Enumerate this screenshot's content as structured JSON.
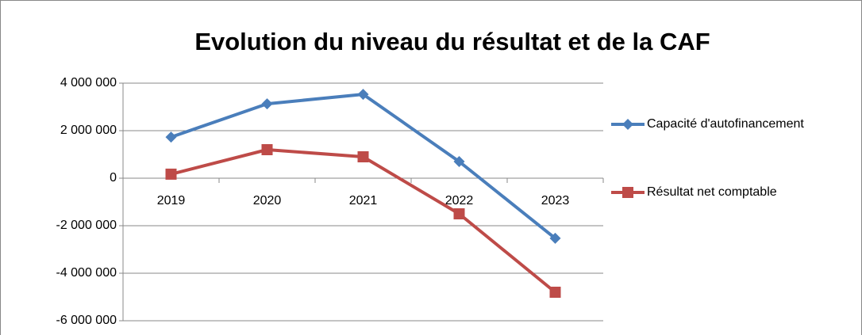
{
  "chart_data": {
    "type": "line",
    "title": "Evolution du niveau du résultat et de la CAF",
    "categories": [
      "2019",
      "2020",
      "2021",
      "2022",
      "2023"
    ],
    "series": [
      {
        "name": "Capacité d'autofinancement",
        "color": "#4a7ebb",
        "marker": "diamond",
        "values": [
          1730000,
          3130000,
          3530000,
          700000,
          -2530000
        ]
      },
      {
        "name": "Résultat net comptable",
        "color": "#be4b48",
        "marker": "square",
        "values": [
          170000,
          1200000,
          900000,
          -1500000,
          -4800000
        ]
      }
    ],
    "ylim": [
      -6000000,
      4000000
    ],
    "yticks": [
      {
        "value": -6000000,
        "label": "-6 000 000"
      },
      {
        "value": -4000000,
        "label": "-4 000 000"
      },
      {
        "value": -2000000,
        "label": "-2 000 000"
      },
      0,
      {
        "value": 2000000,
        "label": "2 000 000"
      },
      {
        "value": 4000000,
        "label": "4 000 000"
      }
    ],
    "grid": true,
    "legend": "right"
  }
}
